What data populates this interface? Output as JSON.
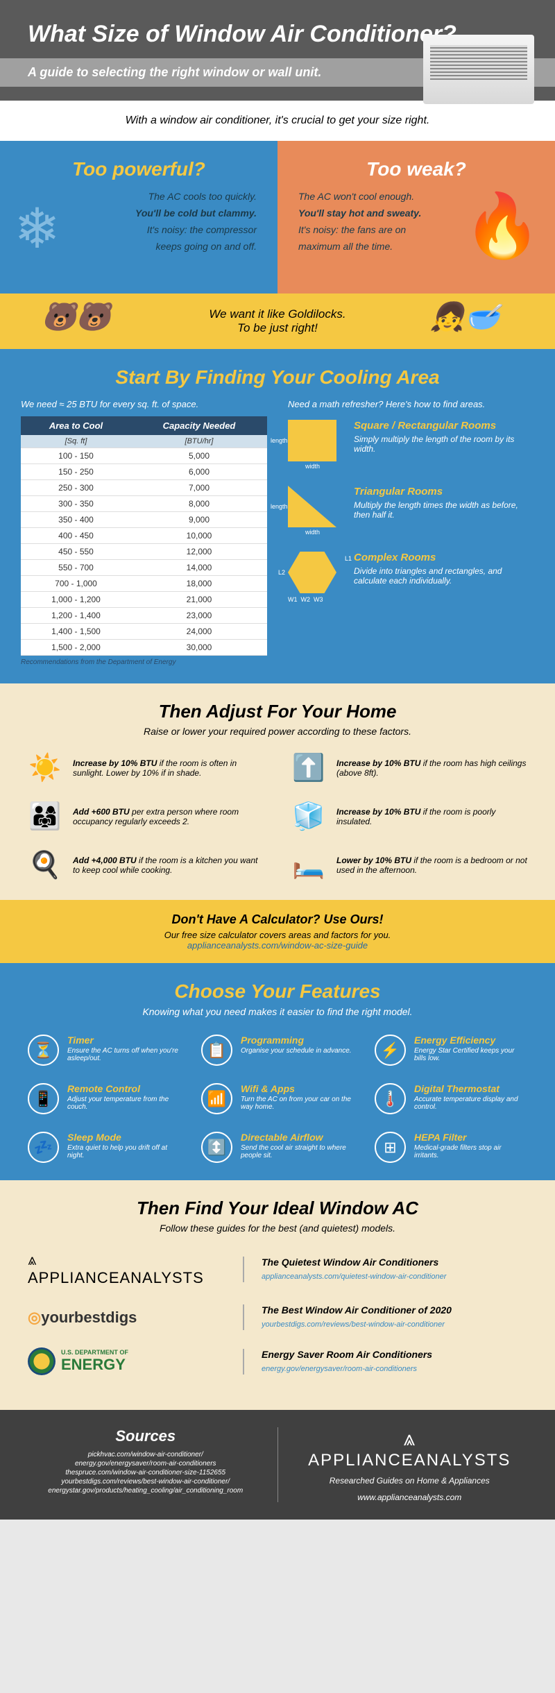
{
  "header": {
    "title": "What Size of Window Air Conditioner?",
    "subtitle": "A guide to selecting the right window or wall unit."
  },
  "intro": "With a window air conditioner, it's crucial to get your size right.",
  "compare": {
    "powerful": {
      "title": "Too powerful?",
      "l1": "The AC cools too quickly.",
      "l2": "You'll be cold but clammy.",
      "l3": "It's noisy: the compressor",
      "l4": "keeps going on and off."
    },
    "weak": {
      "title": "Too weak?",
      "l1": "The AC won't cool enough.",
      "l2": "You'll stay hot and sweaty.",
      "l3": "It's noisy: the fans are on",
      "l4": "maximum all the time."
    }
  },
  "goldilocks": {
    "l1": "We want it like Goldilocks.",
    "l2": "To be just right!"
  },
  "cooling": {
    "title": "Start By Finding Your Cooling Area",
    "note": "We need ≈ 25 BTU for every sq. ft. of space.",
    "col1": "Area to Cool",
    "col2": "Capacity Needed",
    "unit1": "[Sq. ft]",
    "unit2": "[BTU/hr]",
    "rows": [
      [
        "100 - 150",
        "5,000"
      ],
      [
        "150 - 250",
        "6,000"
      ],
      [
        "250 - 300",
        "7,000"
      ],
      [
        "300 - 350",
        "8,000"
      ],
      [
        "350 - 400",
        "9,000"
      ],
      [
        "400 - 450",
        "10,000"
      ],
      [
        "450 - 550",
        "12,000"
      ],
      [
        "550 - 700",
        "14,000"
      ],
      [
        "700 - 1,000",
        "18,000"
      ],
      [
        "1,000 - 1,200",
        "21,000"
      ],
      [
        "1,200 - 1,400",
        "23,000"
      ],
      [
        "1,400 - 1,500",
        "24,000"
      ],
      [
        "1,500 - 2,000",
        "30,000"
      ]
    ],
    "footer": "Recommendations from the Department of Energy",
    "refresher": "Need a math refresher? Here's how to find areas.",
    "shapes": [
      {
        "title": "Square / Rectangular Rooms",
        "desc": "Simply multiply the length of the room by its width."
      },
      {
        "title": "Triangular Rooms",
        "desc": "Multiply the length times the width as before, then half it."
      },
      {
        "title": "Complex Rooms",
        "desc": "Divide into triangles and rectangles, and calculate each individually."
      }
    ]
  },
  "adjust": {
    "title": "Then Adjust For Your Home",
    "sub": "Raise or lower your required power according to these factors.",
    "items": [
      {
        "icon": "☀️",
        "bold": "Increase by 10% BTU",
        "text": " if the room is often in sunlight. Lower by 10% if in shade."
      },
      {
        "icon": "⬆️",
        "bold": "Increase by 10% BTU",
        "text": " if the room has high ceilings (above 8ft)."
      },
      {
        "icon": "👨‍👩‍👧",
        "bold": "Add +600 BTU",
        "text": " per extra person where room occupancy regularly exceeds 2."
      },
      {
        "icon": "🧊",
        "bold": "Increase by 10% BTU",
        "text": " if the room is poorly insulated."
      },
      {
        "icon": "🍳",
        "bold": "Add +4,000 BTU",
        "text": " if the room is a kitchen you want to keep cool while cooking."
      },
      {
        "icon": "🛏️",
        "bold": "Lower by 10% BTU",
        "text": " if the room is a bedroom or not used in the afternoon."
      }
    ]
  },
  "calc": {
    "title": "Don't Have A Calculator? Use Ours!",
    "sub": "Our free size calculator covers areas and factors for you.",
    "link": "applianceanalysts.com/window-ac-size-guide"
  },
  "features": {
    "title": "Choose Your Features",
    "sub": "Knowing what you need makes it easier to find the right model.",
    "items": [
      {
        "icon": "⏳",
        "title": "Timer",
        "desc": "Ensure the AC turns off when you're asleep/out."
      },
      {
        "icon": "📋",
        "title": "Programming",
        "desc": "Organise your schedule in advance."
      },
      {
        "icon": "⚡",
        "title": "Energy Efficiency",
        "desc": "Energy Star Certified keeps your bills low."
      },
      {
        "icon": "📱",
        "title": "Remote Control",
        "desc": "Adjust your temperature from the couch."
      },
      {
        "icon": "📶",
        "title": "Wifi & Apps",
        "desc": "Turn the AC on from your car on the way home."
      },
      {
        "icon": "🌡️",
        "title": "Digital Thermostat",
        "desc": "Accurate temperature display and control."
      },
      {
        "icon": "💤",
        "title": "Sleep Mode",
        "desc": "Extra quiet to help you drift off at night."
      },
      {
        "icon": "↕️",
        "title": "Directable Airflow",
        "desc": "Send the cool air straight to where people sit."
      },
      {
        "icon": "⊞",
        "title": "HEPA Filter",
        "desc": "Medical-grade filters stop air irritants."
      }
    ]
  },
  "find": {
    "title": "Then Find Your Ideal Window AC",
    "sub": "Follow these guides for the best (and quietest) models.",
    "guides": [
      {
        "title": "The Quietest Window Air Conditioners",
        "link": "applianceanalysts.com/quietest-window-air-conditioner"
      },
      {
        "title": "The Best Window Air Conditioner of 2020",
        "link": "yourbestdigs.com/reviews/best-window-air-conditioner"
      },
      {
        "title": "Energy Saver Room Air Conditioners",
        "link": "energy.gov/energysaver/room-air-conditioners"
      }
    ]
  },
  "footer": {
    "sources_title": "Sources",
    "sources": [
      "pickhvac.com/window-air-conditioner/",
      "energy.gov/energysaver/room-air-conditioners",
      "thespruce.com/window-air-conditioner-size-1152655",
      "yourbestdigs.com/reviews/best-window-air-conditioner/",
      "energystar.gov/products/heating_cooling/air_conditioning_room"
    ],
    "brand": "APPLIANCEANALYSTS",
    "tagline": "Researched Guides on Home & Appliances",
    "url": "www.applianceanalysts.com"
  }
}
